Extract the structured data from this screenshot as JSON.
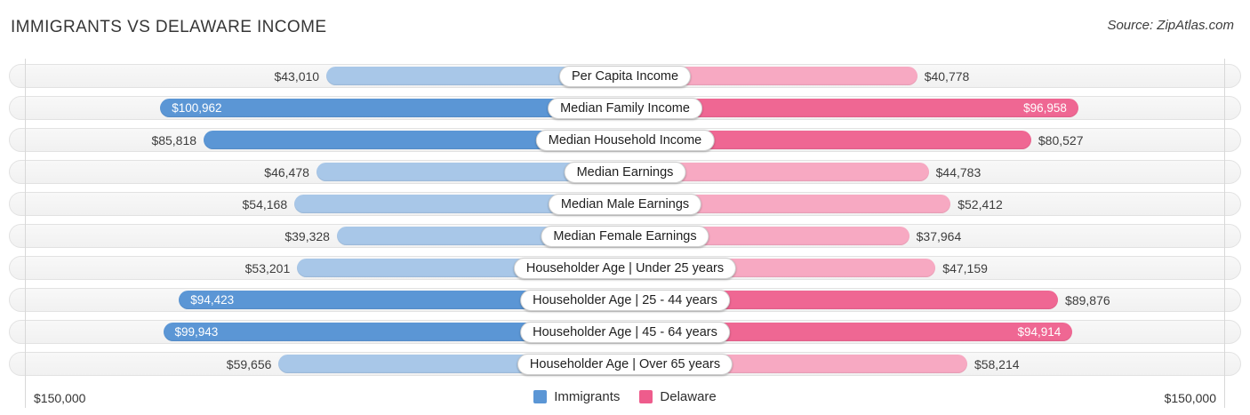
{
  "header": {
    "title": "IMMIGRANTS VS DELAWARE INCOME",
    "source": "Source: ZipAtlas.com"
  },
  "axis": {
    "left_max_label": "$150,000",
    "right_max_label": "$150,000"
  },
  "legend": {
    "items": [
      {
        "label": "Immigrants",
        "color": "#5b96d5"
      },
      {
        "label": "Delaware",
        "color": "#ee5c8c"
      }
    ]
  },
  "colors": {
    "blue_dark": "#5b96d5",
    "blue_light": "#a8c7e8",
    "pink_dark": "#ef6793",
    "pink_light": "#f7a9c2",
    "row_border": "#e2e2e2",
    "axis_line": "#d8d8d8"
  },
  "chart_data": {
    "type": "bar",
    "orientation": "bidirectional-horizontal",
    "title": "IMMIGRANTS VS DELAWARE INCOME",
    "source": "Source: ZipAtlas.com",
    "xlim": [
      0,
      150000
    ],
    "legend_position": "bottom-center",
    "categories": [
      "Per Capita Income",
      "Median Family Income",
      "Median Household Income",
      "Median Earnings",
      "Median Male Earnings",
      "Median Female Earnings",
      "Householder Age | Under 25 years",
      "Householder Age | 25 - 44 years",
      "Householder Age | 45 - 64 years",
      "Householder Age | Over 65 years"
    ],
    "series": [
      {
        "name": "Immigrants",
        "side": "left",
        "values": [
          43010,
          100962,
          85818,
          46478,
          54168,
          39328,
          53201,
          94423,
          99943,
          59656
        ],
        "labels": [
          "$43,010",
          "$100,962",
          "$85,818",
          "$46,478",
          "$54,168",
          "$39,328",
          "$53,201",
          "$94,423",
          "$99,943",
          "$59,656"
        ]
      },
      {
        "name": "Delaware",
        "side": "right",
        "values": [
          40778,
          96958,
          80527,
          44783,
          52412,
          37964,
          47159,
          89876,
          94914,
          58214
        ],
        "labels": [
          "$40,778",
          "$96,958",
          "$80,527",
          "$44,783",
          "$52,412",
          "$37,964",
          "$47,159",
          "$89,876",
          "$94,914",
          "$58,214"
        ]
      }
    ]
  }
}
